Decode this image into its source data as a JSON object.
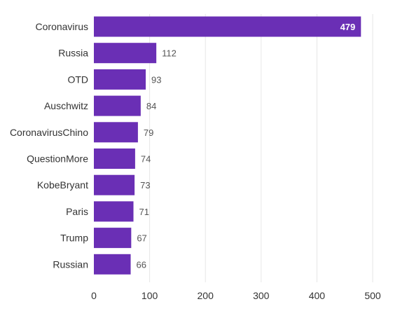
{
  "chart_data": {
    "type": "bar",
    "orientation": "horizontal",
    "categories": [
      "Coronavirus",
      "Russia",
      "OTD",
      "Auschwitz",
      "CoronavirusChino",
      "QuestionMore",
      "KobeBryant",
      "Paris",
      "Trump",
      "Russian"
    ],
    "values": [
      479,
      112,
      93,
      84,
      79,
      74,
      73,
      71,
      67,
      66
    ],
    "xlim": [
      0,
      500
    ],
    "x_ticks": [
      0,
      100,
      200,
      300,
      400,
      500
    ],
    "grid": true,
    "bar_color": "#6a2fb5",
    "title": "",
    "xlabel": "",
    "ylabel": ""
  }
}
